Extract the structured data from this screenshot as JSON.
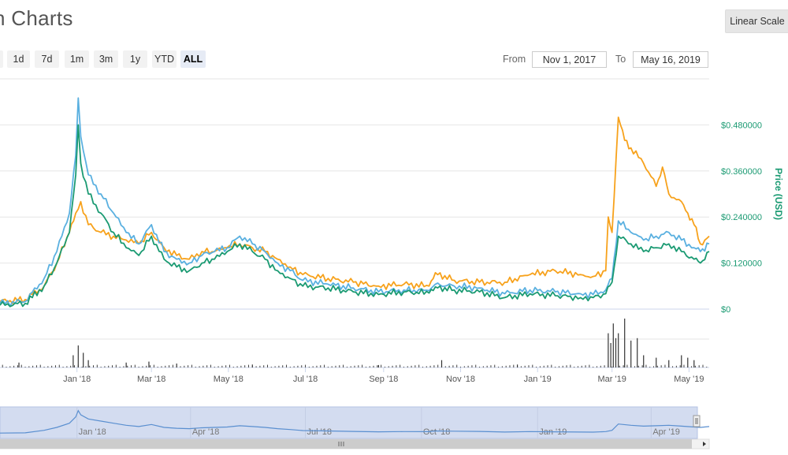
{
  "header": {
    "title": "n Charts",
    "scale_button": "Linear Scale"
  },
  "zoom": {
    "buttons": [
      {
        "label": "n",
        "active": false
      },
      {
        "label": "1d",
        "active": false
      },
      {
        "label": "7d",
        "active": false
      },
      {
        "label": "1m",
        "active": false
      },
      {
        "label": "3m",
        "active": false
      },
      {
        "label": "1y",
        "active": false
      },
      {
        "label": "YTD",
        "active": false
      },
      {
        "label": "ALL",
        "active": true
      }
    ]
  },
  "range": {
    "from_label": "From",
    "from_value": "Nov 1, 2017",
    "to_label": "To",
    "to_value": "May 16, 2019"
  },
  "colors": {
    "orange": "#f7a21c",
    "green": "#1a9a72",
    "blue": "#5ab0e0",
    "grid": "#e6e6e6",
    "navigator_fill": "#d3dcf0"
  },
  "chart_data": {
    "type": "line",
    "ylabel": "Price (USD)",
    "ylim": [
      0,
      0.6
    ],
    "yticks": [
      "$0",
      "$0.120000",
      "$0.240000",
      "$0.360000",
      "$0.480000"
    ],
    "ytick_values": [
      0,
      0.12,
      0.24,
      0.36,
      0.48
    ],
    "xticks": [
      "Jan '18",
      "Mar '18",
      "May '18",
      "Jul '18",
      "Sep '18",
      "Nov '18",
      "Jan '19",
      "Mar '19",
      "May '19"
    ],
    "xtick_days": [
      61,
      120,
      181,
      242,
      304,
      365,
      426,
      485,
      546
    ],
    "navigator_ticks": [
      "Jan '18",
      "Apr '18",
      "Jul '18",
      "Oct '18",
      "Jan '19",
      "Apr '19"
    ],
    "navigator_tick_days": [
      61,
      151,
      242,
      334,
      426,
      516
    ],
    "x_range_days": [
      0,
      562
    ],
    "series": [
      {
        "key": "orange",
        "days": [
          0,
          20,
          35,
          45,
          55,
          60,
          64,
          70,
          80,
          90,
          100,
          110,
          120,
          130,
          140,
          150,
          160,
          170,
          180,
          190,
          200,
          210,
          220,
          230,
          240,
          260,
          280,
          300,
          320,
          340,
          345,
          360,
          380,
          400,
          420,
          440,
          460,
          470,
          480,
          482,
          485,
          490,
          495,
          500,
          510,
          520,
          525,
          530,
          540,
          545,
          550,
          555,
          562
        ],
        "values": [
          0.02,
          0.025,
          0.06,
          0.12,
          0.2,
          0.25,
          0.28,
          0.22,
          0.2,
          0.19,
          0.18,
          0.17,
          0.2,
          0.16,
          0.14,
          0.13,
          0.15,
          0.15,
          0.16,
          0.17,
          0.16,
          0.15,
          0.13,
          0.11,
          0.09,
          0.08,
          0.07,
          0.06,
          0.065,
          0.06,
          0.095,
          0.075,
          0.07,
          0.07,
          0.09,
          0.1,
          0.09,
          0.085,
          0.1,
          0.24,
          0.2,
          0.5,
          0.44,
          0.42,
          0.38,
          0.32,
          0.37,
          0.3,
          0.28,
          0.25,
          0.22,
          0.17,
          0.19
        ]
      },
      {
        "key": "blue",
        "days": [
          0,
          20,
          35,
          45,
          55,
          60,
          62,
          64,
          70,
          80,
          90,
          100,
          110,
          120,
          130,
          140,
          150,
          160,
          170,
          180,
          190,
          200,
          210,
          220,
          230,
          240,
          260,
          280,
          300,
          320,
          340,
          345,
          360,
          380,
          400,
          420,
          440,
          460,
          470,
          480,
          485,
          490,
          500,
          510,
          520,
          530,
          540,
          550,
          555,
          562
        ],
        "values": [
          0.015,
          0.02,
          0.08,
          0.15,
          0.25,
          0.4,
          0.55,
          0.45,
          0.35,
          0.3,
          0.25,
          0.2,
          0.17,
          0.22,
          0.15,
          0.13,
          0.12,
          0.14,
          0.15,
          0.16,
          0.19,
          0.17,
          0.15,
          0.12,
          0.1,
          0.075,
          0.065,
          0.055,
          0.045,
          0.05,
          0.048,
          0.065,
          0.06,
          0.055,
          0.04,
          0.05,
          0.045,
          0.04,
          0.038,
          0.05,
          0.08,
          0.23,
          0.2,
          0.18,
          0.19,
          0.2,
          0.18,
          0.16,
          0.15,
          0.17
        ]
      },
      {
        "key": "green",
        "days": [
          0,
          20,
          35,
          45,
          55,
          60,
          62,
          64,
          70,
          80,
          90,
          100,
          110,
          120,
          130,
          140,
          150,
          160,
          170,
          180,
          190,
          200,
          210,
          220,
          230,
          240,
          260,
          280,
          300,
          320,
          340,
          345,
          360,
          380,
          400,
          420,
          440,
          460,
          470,
          480,
          485,
          490,
          500,
          510,
          520,
          530,
          540,
          550,
          555,
          562
        ],
        "values": [
          0.01,
          0.015,
          0.06,
          0.12,
          0.2,
          0.35,
          0.48,
          0.38,
          0.3,
          0.25,
          0.2,
          0.16,
          0.14,
          0.19,
          0.13,
          0.11,
          0.1,
          0.12,
          0.13,
          0.15,
          0.17,
          0.15,
          0.13,
          0.1,
          0.08,
          0.06,
          0.055,
          0.045,
          0.038,
          0.045,
          0.042,
          0.058,
          0.05,
          0.045,
          0.03,
          0.04,
          0.035,
          0.03,
          0.03,
          0.04,
          0.07,
          0.19,
          0.17,
          0.15,
          0.16,
          0.17,
          0.15,
          0.13,
          0.12,
          0.15
        ]
      }
    ],
    "volume_spikes_days": [
      15,
      58,
      62,
      66,
      70,
      100,
      118,
      140,
      200,
      300,
      350,
      410,
      482,
      484,
      486,
      488,
      490,
      495,
      500,
      505,
      510,
      520,
      530,
      540,
      545,
      550
    ],
    "volume_spikes_values": [
      0.1,
      0.25,
      0.45,
      0.3,
      0.15,
      0.1,
      0.12,
      0.08,
      0.06,
      0.05,
      0.15,
      0.06,
      0.7,
      0.5,
      0.9,
      0.6,
      0.7,
      1.0,
      0.55,
      0.6,
      0.25,
      0.2,
      0.15,
      0.25,
      0.2,
      0.15
    ]
  }
}
